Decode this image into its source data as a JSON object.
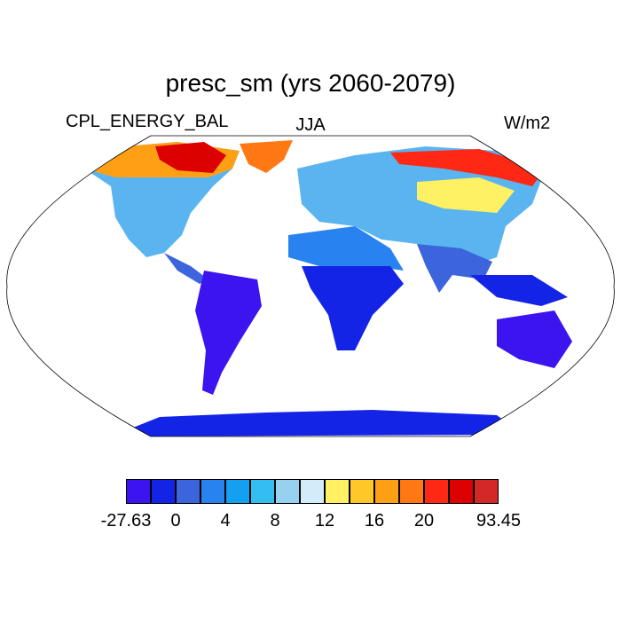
{
  "title": "presc_sm (yrs 2060-2079)",
  "left_label": "CPL_ENERGY_BAL",
  "center_label": "JJA",
  "units_label": "W/m2",
  "colorbar": {
    "colors": [
      "#3c14f0",
      "#1424e6",
      "#3c64dc",
      "#2882f0",
      "#14a0f0",
      "#32bef0",
      "#96d2f0",
      "#d2ecfa",
      "#fff064",
      "#ffc828",
      "#ffa014",
      "#ff7814",
      "#ff2814",
      "#dc0000",
      "#d22828"
    ],
    "tick_labels": [
      "-27.63",
      "0",
      "4",
      "8",
      "12",
      "16",
      "20",
      "93.45"
    ]
  }
}
